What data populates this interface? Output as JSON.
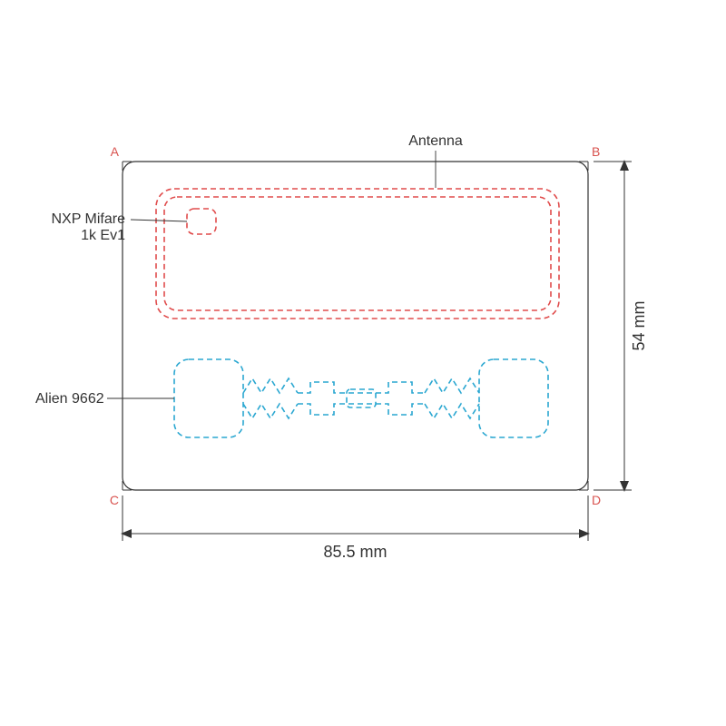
{
  "type": "technical-diagram",
  "background_color": "#ffffff",
  "card": {
    "outline_color": "#333333",
    "outline_width": 1.2,
    "corner_radius": 14,
    "corners": {
      "A": "A",
      "B": "B",
      "C": "C",
      "D": "D",
      "label_color": "#d9534f",
      "label_fontsize": 14,
      "tick_color": "#333333"
    }
  },
  "labels": {
    "antenna": "Antenna",
    "nxp": "NXP Mifare\n1k Ev1",
    "alien": "Alien 9662",
    "text_color": "#333333",
    "fontsize": 16
  },
  "antenna_loop": {
    "stroke_color": "#e04b4b",
    "stroke_width": 1.6,
    "dash": "6,4",
    "outer_radius": 20,
    "inner_radius": 14,
    "chip_radius": 8
  },
  "uhf_inlay": {
    "stroke_color": "#2aa7d1",
    "stroke_width": 1.6,
    "dash": "6,4",
    "pad_radius": 16
  },
  "dimensions": {
    "width_label": "85.5 mm",
    "height_label": "54 mm",
    "line_color": "#333333",
    "line_width": 1,
    "text_color": "#333333",
    "fontsize": 18
  },
  "leader_line": {
    "color": "#333333",
    "width": 0.9
  }
}
